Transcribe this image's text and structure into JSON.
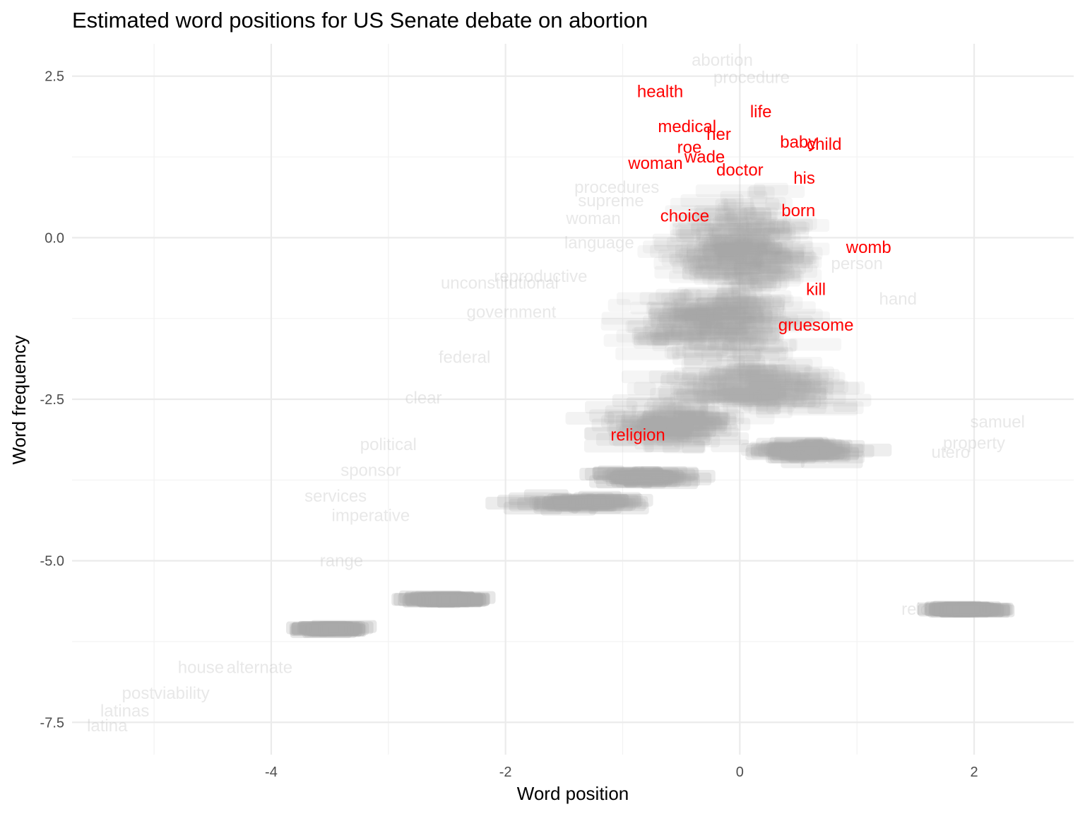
{
  "chart_data": {
    "type": "scatter",
    "title": "Estimated word positions for US Senate debate on abortion",
    "xlabel": "Word position",
    "ylabel": "Word frequency",
    "xlim": [
      -5.7,
      2.85
    ],
    "ylim": [
      -8.0,
      3.0
    ],
    "x_ticks": [
      -4,
      -2,
      0,
      2
    ],
    "y_ticks": [
      2.5,
      0.0,
      -2.5,
      -5.0,
      -7.5
    ],
    "grid": true,
    "colors": {
      "background_word": "#bebebe",
      "highlight_word": "#ff0000",
      "dense_cluster": "#a9a9a9"
    },
    "highlight_words": [
      {
        "word": "health",
        "x": -0.68,
        "y": 2.26
      },
      {
        "word": "life",
        "x": 0.18,
        "y": 1.95
      },
      {
        "word": "medical",
        "x": -0.45,
        "y": 1.72
      },
      {
        "word": "her",
        "x": -0.18,
        "y": 1.6
      },
      {
        "word": "baby",
        "x": 0.5,
        "y": 1.48
      },
      {
        "word": "child",
        "x": 0.72,
        "y": 1.45
      },
      {
        "word": "roe",
        "x": -0.43,
        "y": 1.4
      },
      {
        "word": "wade",
        "x": -0.3,
        "y": 1.25
      },
      {
        "word": "woman",
        "x": -0.72,
        "y": 1.15
      },
      {
        "word": "doctor",
        "x": 0.0,
        "y": 1.05
      },
      {
        "word": "his",
        "x": 0.55,
        "y": 0.92
      },
      {
        "word": "born",
        "x": 0.5,
        "y": 0.42
      },
      {
        "word": "choice",
        "x": -0.47,
        "y": 0.34
      },
      {
        "word": "womb",
        "x": 1.1,
        "y": -0.15
      },
      {
        "word": "kill",
        "x": 0.65,
        "y": -0.8
      },
      {
        "word": "gruesome",
        "x": 0.65,
        "y": -1.35
      },
      {
        "word": "religion",
        "x": -0.87,
        "y": -3.05
      }
    ],
    "background_words": [
      {
        "word": "abortion",
        "x": -0.15,
        "y": 2.75
      },
      {
        "word": "procedure",
        "x": 0.1,
        "y": 2.48
      },
      {
        "word": "procedures",
        "x": -1.05,
        "y": 0.78
      },
      {
        "word": "supreme",
        "x": -1.1,
        "y": 0.57
      },
      {
        "word": "woman",
        "x": -1.25,
        "y": 0.3
      },
      {
        "word": "language",
        "x": -1.2,
        "y": -0.08
      },
      {
        "word": "unconstitutional",
        "x": -2.05,
        "y": -0.7
      },
      {
        "word": "reproductive",
        "x": -1.7,
        "y": -0.6
      },
      {
        "word": "government",
        "x": -1.95,
        "y": -1.15
      },
      {
        "word": "federal",
        "x": -2.35,
        "y": -1.85
      },
      {
        "word": "clear",
        "x": -2.7,
        "y": -2.48
      },
      {
        "word": "political",
        "x": -3.0,
        "y": -3.2
      },
      {
        "word": "sponsor",
        "x": -3.15,
        "y": -3.6
      },
      {
        "word": "services",
        "x": -3.45,
        "y": -4.0
      },
      {
        "word": "imperative",
        "x": -3.15,
        "y": -4.3
      },
      {
        "word": "range",
        "x": -3.4,
        "y": -5.0
      },
      {
        "word": "house",
        "x": -4.6,
        "y": -6.65
      },
      {
        "word": "alternate",
        "x": -4.1,
        "y": -6.65
      },
      {
        "word": "postviability",
        "x": -4.9,
        "y": -7.05
      },
      {
        "word": "latinas",
        "x": -5.25,
        "y": -7.32
      },
      {
        "word": "latina",
        "x": -5.4,
        "y": -7.55
      },
      {
        "word": "person",
        "x": 1.0,
        "y": -0.4
      },
      {
        "word": "hand",
        "x": 1.35,
        "y": -0.95
      },
      {
        "word": "samuel",
        "x": 2.2,
        "y": -2.85
      },
      {
        "word": "property",
        "x": 2.0,
        "y": -3.18
      },
      {
        "word": "utero",
        "x": 1.8,
        "y": -3.32
      },
      {
        "word": "reid",
        "x": 1.5,
        "y": -5.75
      }
    ]
  }
}
